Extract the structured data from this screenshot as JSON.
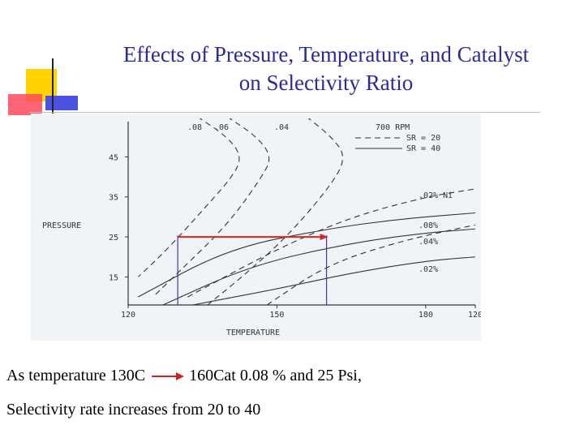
{
  "slide": {
    "title_line1": "Effects of Pressure, Temperature, and Catalyst",
    "title_line2": "on Selectivity Ratio",
    "caption_line1_start": "As temperature 130C",
    "caption_line1_end": "160Cat 0.08 % and 25 Psi,",
    "caption_line2": "Selectivity rate  increases from 20 to 40"
  },
  "chart_data": {
    "type": "line",
    "xlabel": "TEMPERATURE",
    "ylabel": "PRESSURE",
    "x_ticks": [
      "120",
      "150",
      "180",
      "120"
    ],
    "y_ticks": [
      "15",
      "25",
      "35",
      "45"
    ],
    "legend": {
      "header": "700 RPM",
      "entries": [
        {
          "label": "SR = 20",
          "style": "dashed"
        },
        {
          "label": "SR = 40",
          "style": "solid"
        }
      ]
    },
    "top_labels": [
      ".08",
      ".06",
      ".04"
    ],
    "right_labels": [
      ".02% Ni",
      ".08%",
      ".04%",
      ".02%"
    ],
    "series": [
      {
        "name": ".08",
        "style": "solid",
        "group": "SR = 40",
        "points": [
          [
            122,
            10
          ],
          [
            140,
            22
          ],
          [
            160,
            27
          ],
          [
            175,
            29.5
          ],
          [
            190,
            31
          ]
        ]
      },
      {
        "name": ".04",
        "style": "solid",
        "group": "SR = 40",
        "points": [
          [
            127,
            8
          ],
          [
            145,
            18
          ],
          [
            165,
            23.5
          ],
          [
            180,
            26
          ],
          [
            190,
            27
          ]
        ]
      },
      {
        "name": ".02",
        "style": "solid",
        "group": "SR = 40",
        "points": [
          [
            133,
            8
          ],
          [
            150,
            12
          ],
          [
            165,
            16
          ],
          [
            180,
            19
          ],
          [
            190,
            20
          ]
        ]
      },
      {
        "name": ".02% Ni",
        "style": "dashed",
        "group": "SR = 20",
        "points": [
          [
            132,
            10
          ],
          [
            150,
            22
          ],
          [
            165,
            30
          ],
          [
            180,
            35
          ],
          [
            190,
            37
          ]
        ]
      },
      {
        "name": ".08",
        "style": "dashed",
        "group": "SR = 20",
        "points": [
          [
            148,
            8
          ],
          [
            160,
            18
          ],
          [
            175,
            24
          ],
          [
            190,
            28
          ]
        ]
      },
      {
        "name": ".08",
        "style": "dashed",
        "group": "SR = 20",
        "points": [
          [
            134,
            55
          ],
          [
            140,
            50
          ],
          [
            143,
            45
          ],
          [
            141,
            40
          ],
          [
            136,
            33
          ],
          [
            128,
            22
          ],
          [
            122,
            15
          ]
        ]
      },
      {
        "name": ".06",
        "style": "dashed",
        "group": "SR = 20",
        "points": [
          [
            140,
            55
          ],
          [
            146,
            50
          ],
          [
            149,
            45
          ],
          [
            147,
            40
          ],
          [
            140,
            28
          ],
          [
            130,
            16
          ],
          [
            125,
            10
          ]
        ]
      },
      {
        "name": ".04",
        "style": "dashed",
        "group": "SR = 20",
        "points": [
          [
            156,
            55
          ],
          [
            161,
            50
          ],
          [
            164,
            45
          ],
          [
            161,
            38
          ],
          [
            152,
            25
          ],
          [
            143,
            15
          ],
          [
            136,
            8
          ]
        ]
      }
    ],
    "annotation": {
      "type": "arrow",
      "from": [
        130,
        25
      ],
      "to": [
        160,
        25
      ],
      "color": "#dd2222"
    },
    "reference_lines_x": [
      130,
      160
    ],
    "colors": {
      "arrow": "#dd2222",
      "reference": "#3a3aa0",
      "curves": "#333333"
    }
  }
}
